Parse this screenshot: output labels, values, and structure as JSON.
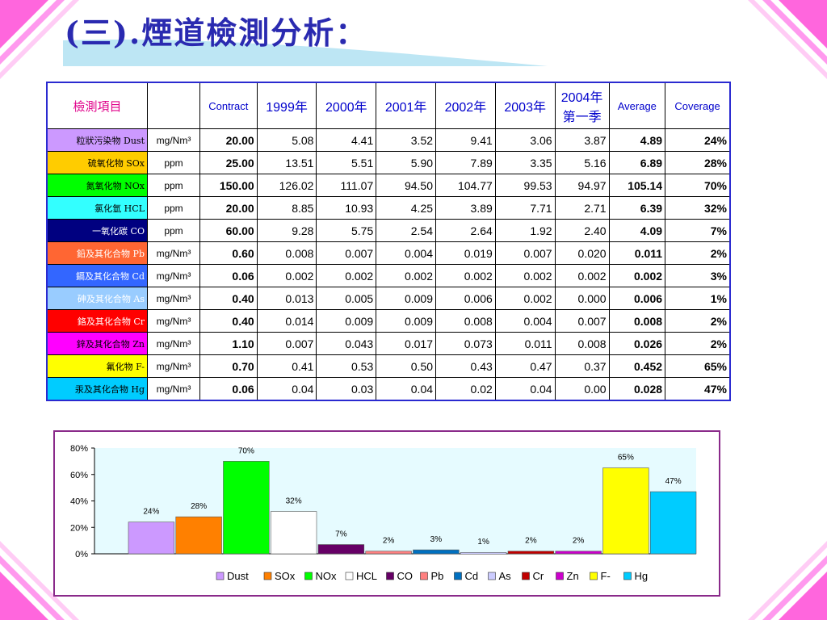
{
  "title": "(三).煙道檢測分析：",
  "table": {
    "headers": [
      "檢測項目",
      "",
      "Contract",
      "1999年",
      "2000年",
      "2001年",
      "2002年",
      "2003年",
      "2004年第一季",
      "Average",
      "Coverage"
    ],
    "rows": [
      {
        "name": "粒狀污染物 Dust",
        "unit": "mg/Nm³",
        "contract": "20.00",
        "y1999": "5.08",
        "y2000": "4.41",
        "y2001": "3.52",
        "y2002": "9.41",
        "y2003": "3.06",
        "y2004": "3.87",
        "average": "4.89",
        "coverage": "24%",
        "color": "#cc99ff",
        "text_color": "#000000"
      },
      {
        "name": "硫氧化物 SOx",
        "unit": "ppm",
        "contract": "25.00",
        "y1999": "13.51",
        "y2000": "5.51",
        "y2001": "5.90",
        "y2002": "7.89",
        "y2003": "3.35",
        "y2004": "5.16",
        "average": "6.89",
        "coverage": "28%",
        "color": "#ffcc00",
        "text_color": "#000000"
      },
      {
        "name": "氮氧化物 NOx",
        "unit": "ppm",
        "contract": "150.00",
        "y1999": "126.02",
        "y2000": "111.07",
        "y2001": "94.50",
        "y2002": "104.77",
        "y2003": "99.53",
        "y2004": "94.97",
        "average": "105.14",
        "coverage": "70%",
        "color": "#00ff00",
        "text_color": "#000000"
      },
      {
        "name": "氯化氫 HCL",
        "unit": "ppm",
        "contract": "20.00",
        "y1999": "8.85",
        "y2000": "10.93",
        "y2001": "4.25",
        "y2002": "3.89",
        "y2003": "7.71",
        "y2004": "2.71",
        "average": "6.39",
        "coverage": "32%",
        "color": "#33ffff",
        "text_color": "#000000"
      },
      {
        "name": "一氧化碳 CO",
        "unit": "ppm",
        "contract": "60.00",
        "y1999": "9.28",
        "y2000": "5.75",
        "y2001": "2.54",
        "y2002": "2.64",
        "y2003": "1.92",
        "y2004": "2.40",
        "average": "4.09",
        "coverage": "7%",
        "color": "#000080",
        "text_color": "#ffffff"
      },
      {
        "name": "鉛及其化合物 Pb",
        "unit": "mg/Nm³",
        "contract": "0.60",
        "y1999": "0.008",
        "y2000": "0.007",
        "y2001": "0.004",
        "y2002": "0.019",
        "y2003": "0.007",
        "y2004": "0.020",
        "average": "0.011",
        "coverage": "2%",
        "color": "#ff6633",
        "text_color": "#ffffff"
      },
      {
        "name": "鎘及其化合物 Cd",
        "unit": "mg/Nm³",
        "contract": "0.06",
        "y1999": "0.002",
        "y2000": "0.002",
        "y2001": "0.002",
        "y2002": "0.002",
        "y2003": "0.002",
        "y2004": "0.002",
        "average": "0.002",
        "coverage": "3%",
        "color": "#3366ff",
        "text_color": "#ffffff"
      },
      {
        "name": "砷及其化合物 As",
        "unit": "mg/Nm³",
        "contract": "0.40",
        "y1999": "0.013",
        "y2000": "0.005",
        "y2001": "0.009",
        "y2002": "0.006",
        "y2003": "0.002",
        "y2004": "0.000",
        "average": "0.006",
        "coverage": "1%",
        "color": "#99ccff",
        "text_color": "#ffffff"
      },
      {
        "name": "鉻及其化合物 Cr",
        "unit": "mg/Nm³",
        "contract": "0.40",
        "y1999": "0.014",
        "y2000": "0.009",
        "y2001": "0.009",
        "y2002": "0.008",
        "y2003": "0.004",
        "y2004": "0.007",
        "average": "0.008",
        "coverage": "2%",
        "color": "#ff0000",
        "text_color": "#ffffff"
      },
      {
        "name": "鋅及其化合物 Zn",
        "unit": "mg/Nm³",
        "contract": "1.10",
        "y1999": "0.007",
        "y2000": "0.043",
        "y2001": "0.017",
        "y2002": "0.073",
        "y2003": "0.011",
        "y2004": "0.008",
        "average": "0.026",
        "coverage": "2%",
        "color": "#ff00ff",
        "text_color": "#000000"
      },
      {
        "name": "氟化物 F-",
        "unit": "mg/Nm³",
        "contract": "0.70",
        "y1999": "0.41",
        "y2000": "0.53",
        "y2001": "0.50",
        "y2002": "0.43",
        "y2003": "0.47",
        "y2004": "0.37",
        "average": "0.452",
        "coverage": "65%",
        "color": "#ffff00",
        "text_color": "#000000"
      },
      {
        "name": "汞及其化合物 Hg",
        "unit": "mg/Nm³",
        "contract": "0.06",
        "y1999": "0.04",
        "y2000": "0.03",
        "y2001": "0.04",
        "y2002": "0.02",
        "y2003": "0.04",
        "y2004": "0.00",
        "average": "0.028",
        "coverage": "47%",
        "color": "#00ccff",
        "text_color": "#000000"
      }
    ]
  },
  "chart_data": {
    "type": "bar",
    "categories": [
      "Dust",
      "SOx",
      "NOx",
      "HCL",
      "CO",
      "Pb",
      "Cd",
      "As",
      "Cr",
      "Zn",
      "F-",
      "Hg"
    ],
    "values": [
      24,
      28,
      70,
      32,
      7,
      2,
      3,
      1,
      2,
      2,
      65,
      47
    ],
    "data_labels": [
      "24%",
      "28%",
      "70%",
      "32%",
      "7%",
      "2%",
      "3%",
      "1%",
      "2%",
      "2%",
      "65%",
      "47%"
    ],
    "colors": [
      "#cc99ff",
      "#ff8000",
      "#00ff00",
      "#ffffff",
      "#660066",
      "#ff8080",
      "#0070c0",
      "#ccccff",
      "#c00000",
      "#cc00cc",
      "#ffff00",
      "#00ccff"
    ],
    "yticks": [
      "0%",
      "20%",
      "40%",
      "60%",
      "80%"
    ],
    "ylim": [
      0,
      80
    ],
    "legend_position": "bottom",
    "grid": false,
    "title": "",
    "xlabel": "",
    "ylabel": ""
  },
  "colors": {
    "accent": "#ff66dd",
    "title": "#2a2ab0",
    "table_border": "#2a2ad0",
    "chart_border": "#8a2a8a",
    "plot_bg": "#e6fbff"
  }
}
